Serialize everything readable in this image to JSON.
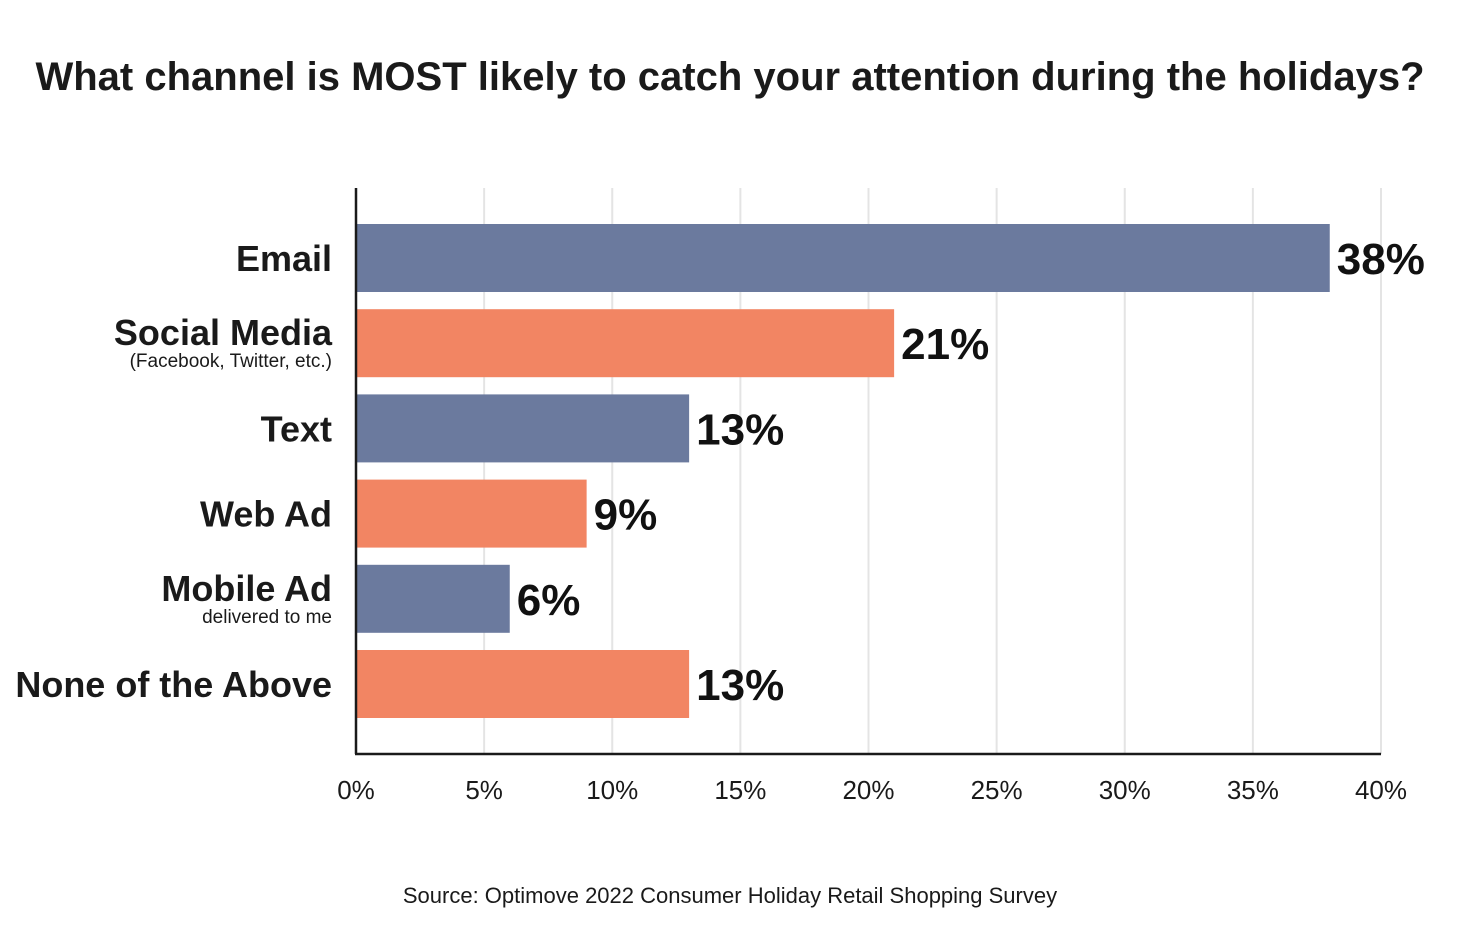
{
  "chart_data": {
    "type": "bar",
    "orientation": "horizontal",
    "title": "What channel is MOST likely to catch your attention during the holidays?",
    "categories": [
      {
        "label": "Email",
        "sublabel": ""
      },
      {
        "label": "Social Media",
        "sublabel": "(Facebook, Twitter, etc.)"
      },
      {
        "label": "Text",
        "sublabel": ""
      },
      {
        "label": "Web Ad",
        "sublabel": ""
      },
      {
        "label": "Mobile Ad",
        "sublabel": "delivered to me"
      },
      {
        "label": "None of the Above",
        "sublabel": ""
      }
    ],
    "values": [
      38,
      21,
      13,
      9,
      6,
      13
    ],
    "value_labels": [
      "38%",
      "21%",
      "13%",
      "9%",
      "6%",
      "13%"
    ],
    "bar_colors": [
      "#6b7a9e",
      "#f28563",
      "#6b7a9e",
      "#f28563",
      "#6b7a9e",
      "#f28563"
    ],
    "xlim": [
      0,
      40
    ],
    "x_ticks": [
      0,
      5,
      10,
      15,
      20,
      25,
      30,
      35,
      40
    ],
    "x_tick_labels": [
      "0%",
      "5%",
      "10%",
      "15%",
      "20%",
      "25%",
      "30%",
      "35%",
      "40%"
    ],
    "xlabel": "",
    "ylabel": "",
    "grid": true,
    "source": "Source: Optimove 2022 Consumer Holiday Retail Shopping Survey"
  }
}
